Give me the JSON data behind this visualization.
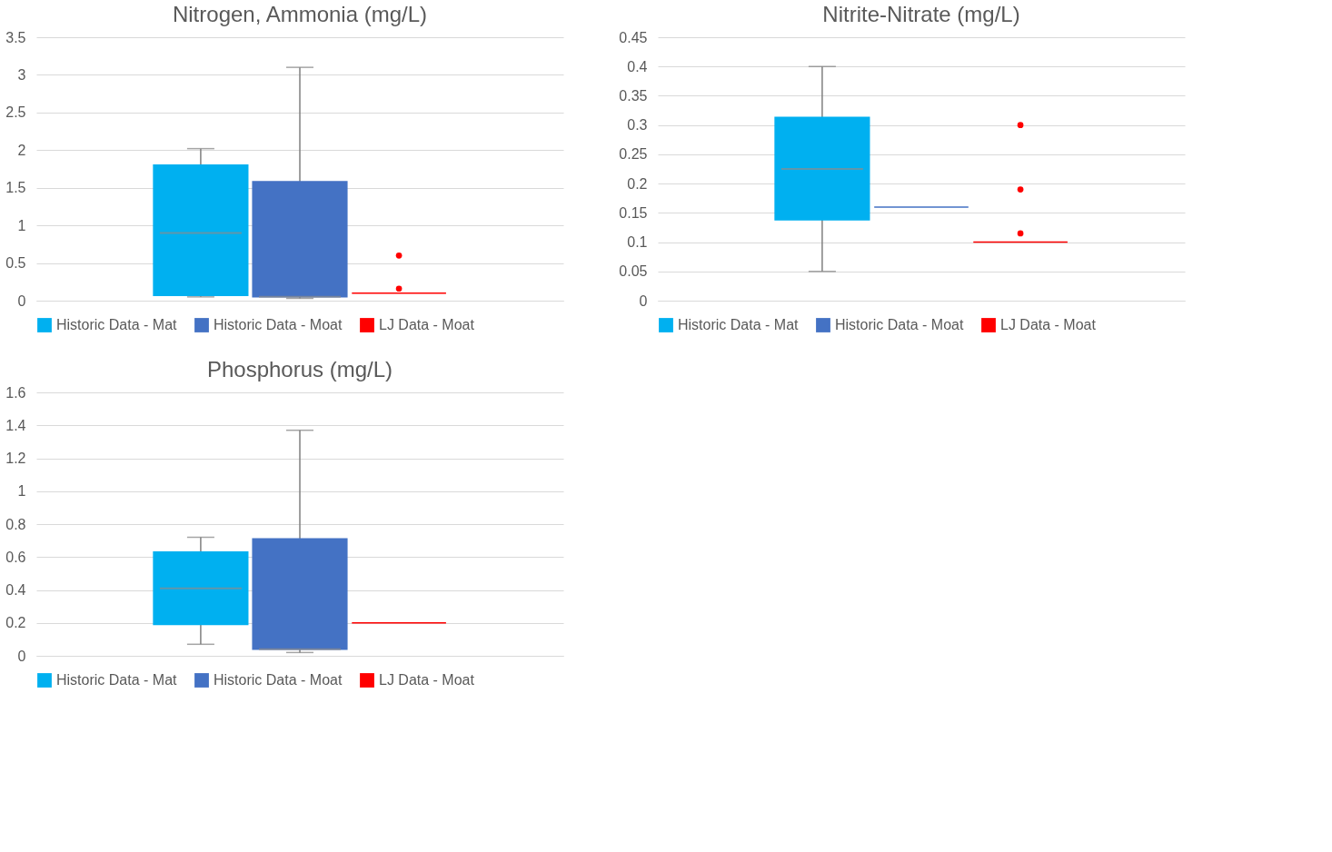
{
  "chart_data": [
    {
      "type": "box",
      "title": "Nitrogen, Ammonia (mg/L)",
      "categories": [
        null
      ],
      "ylim": [
        0,
        3.5
      ],
      "yticks": [
        0,
        0.5,
        1,
        1.5,
        2,
        2.5,
        3,
        3.5
      ],
      "grid": "y",
      "legend": "bottom",
      "tick_labels": "y",
      "series": [
        {
          "name": "Historic Data - Mat",
          "color": "#00b0f0",
          "boxes": [
            {
              "low": 0.05,
              "q1": 0.07,
              "median": 0.9,
              "q3": 1.8,
              "high": 2.02
            }
          ]
        },
        {
          "name": "Historic Data - Moat",
          "color": "#4472c4",
          "boxes": [
            {
              "low": 0.03,
              "q1": 0.05,
              "median": 0.05,
              "q3": 1.58,
              "high": 3.1
            }
          ]
        },
        {
          "name": "LJ Data - Moat",
          "color": "#ff0000",
          "boxes": [
            {
              "low": 0.1,
              "q1": 0.1,
              "median": 0.1,
              "q3": 0.1,
              "high": 0.1,
              "outliers": [
                0.16,
                0.6
              ]
            }
          ]
        }
      ]
    },
    {
      "type": "box",
      "title": "Nitrite-Nitrate (mg/L)",
      "categories": [
        null
      ],
      "ylim": [
        0,
        0.45
      ],
      "yticks": [
        0,
        0.05,
        0.1,
        0.15,
        0.2,
        0.25,
        0.3,
        0.35,
        0.4,
        0.45
      ],
      "grid": "y",
      "legend": "bottom",
      "tick_labels": "y",
      "series": [
        {
          "name": "Historic Data - Mat",
          "color": "#00b0f0",
          "boxes": [
            {
              "low": 0.05,
              "q1": 0.138,
              "median": 0.225,
              "q3": 0.313,
              "high": 0.4
            }
          ]
        },
        {
          "name": "Historic Data - Moat",
          "color": "#4472c4",
          "boxes": [
            {
              "low": 0.16,
              "q1": 0.16,
              "median": 0.16,
              "q3": 0.16,
              "high": 0.16
            }
          ]
        },
        {
          "name": "LJ Data - Moat",
          "color": "#ff0000",
          "boxes": [
            {
              "low": 0.1,
              "q1": 0.1,
              "median": 0.1,
              "q3": 0.1,
              "high": 0.1,
              "outliers": [
                0.115,
                0.19,
                0.3
              ]
            }
          ]
        }
      ]
    },
    {
      "type": "box",
      "title": "Phosphorus (mg/L)",
      "categories": [
        null
      ],
      "ylim": [
        0,
        1.6
      ],
      "yticks": [
        0,
        0.2,
        0.4,
        0.6,
        0.8,
        1,
        1.2,
        1.4,
        1.6
      ],
      "grid": "y",
      "legend": "bottom",
      "tick_labels": "y",
      "series": [
        {
          "name": "Historic Data - Mat",
          "color": "#00b0f0",
          "boxes": [
            {
              "low": 0.07,
              "q1": 0.19,
              "median": 0.41,
              "q3": 0.63,
              "high": 0.72
            }
          ]
        },
        {
          "name": "Historic Data - Moat",
          "color": "#4472c4",
          "boxes": [
            {
              "low": 0.02,
              "q1": 0.04,
              "median": 0.04,
              "q3": 0.71,
              "high": 1.37
            }
          ]
        },
        {
          "name": "LJ Data - Moat",
          "color": "#ff0000",
          "boxes": [
            {
              "low": 0.2,
              "q1": 0.2,
              "median": 0.2,
              "q3": 0.2,
              "high": 0.2
            }
          ]
        }
      ]
    }
  ]
}
